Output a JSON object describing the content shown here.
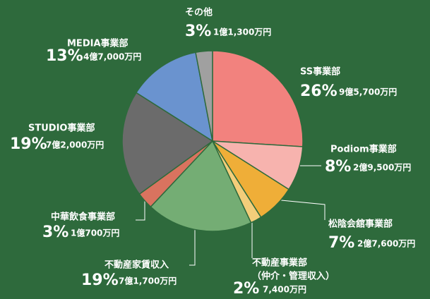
{
  "chart_data": {
    "type": "pie",
    "categories": [
      "SS事業部",
      "Podiom事業部",
      "松陰会舘事業部",
      "不動産事業部",
      "不動産家賃収入",
      "中華飲食事業部",
      "STUDIO事業部",
      "MEDIA事業部",
      "その他"
    ],
    "values": [
      26,
      8,
      7,
      2,
      19,
      3,
      19,
      13,
      3
    ],
    "value_labels": [
      "26%",
      "8%",
      "7%",
      "2%",
      "19%",
      "3%",
      "19%",
      "13%",
      "3%"
    ],
    "amounts": [
      "9億5,700万円",
      "2億9,500万円",
      "2億7,600万円",
      "7,400万円",
      "7億1,700万円",
      "1億700万円",
      "7億2,000万円",
      "4億7,000万円",
      "1億1,300万円"
    ],
    "colors": [
      "#f2827e",
      "#f7b3ae",
      "#efae38",
      "#f3cd7a",
      "#74ad74",
      "#d9735f",
      "#6b6b6b",
      "#6a93cf",
      "#a0a0a0"
    ],
    "annotations": [
      {
        "text": "（仲介・管理収入）"
      }
    ]
  }
}
